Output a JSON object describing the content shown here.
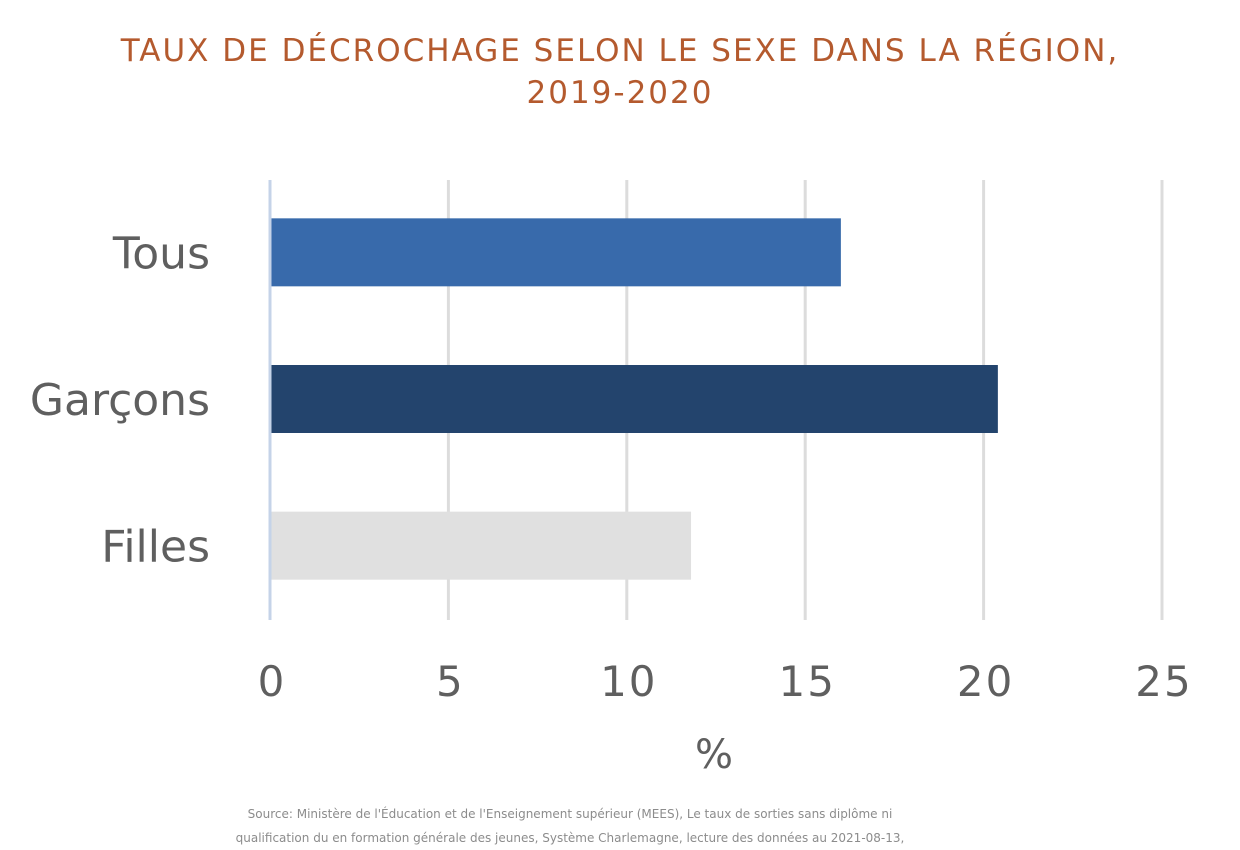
{
  "chart_data": {
    "type": "bar",
    "orientation": "horizontal",
    "title_lines": [
      "TAUX DE DÉCROCHAGE SELON LE SEXE DANS LA RÉGION,",
      "2019-2020"
    ],
    "categories": [
      "Tous",
      "Garçons",
      "Filles"
    ],
    "values": [
      16.0,
      20.4,
      11.8
    ],
    "bar_colors": [
      "#386aab",
      "#23446d",
      "#e0e0e0"
    ],
    "xlabel": "%",
    "ylabel": "",
    "xlim": [
      0,
      25
    ],
    "xticks": [
      "0",
      "5",
      "10",
      "15",
      "20",
      "25"
    ],
    "grid": "vertical",
    "legend": "none"
  },
  "source_lines": [
    "Source: Ministère de l'Éducation et de l'Enseignement supérieur (MEES), Le taux de sorties sans diplôme ni",
    "qualification du en formation générale des jeunes, Système Charlemagne, lecture des données au 2021-08-13,"
  ]
}
